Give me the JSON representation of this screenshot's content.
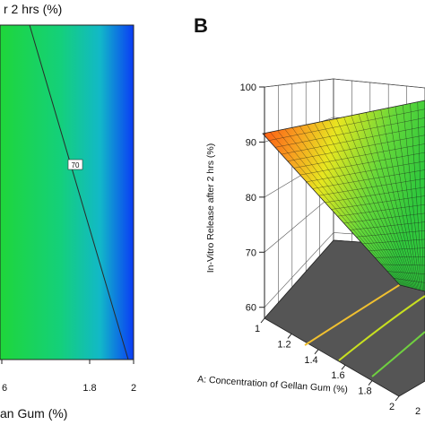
{
  "panel_b_label": "B",
  "chart_data": [
    {
      "type": "heatmap",
      "subtype": "contour",
      "title_fragment": "r 2 hrs (%)",
      "xlabel_fragment": "an Gum (%)",
      "x_ticks": [
        "6",
        "1.8",
        "2"
      ],
      "contours": [
        {
          "label": "70",
          "value": 70
        }
      ],
      "colors": {
        "low": "#1fd63a",
        "mid": "#14c8b4",
        "high": "#0a3cf5"
      },
      "grid": false
    },
    {
      "type": "surface",
      "subtype": "3d-response-surface",
      "xlabel": "A: Concentration of Gellan Gum (%)",
      "zlabel": "In-Vitro Release after 2 hrs (%)",
      "x_ticks": [
        "1",
        "1.2",
        "1.4",
        "1.6",
        "1.8",
        "2"
      ],
      "y_ticks_visible": [
        "2"
      ],
      "z_ticks": [
        "60",
        "70",
        "80",
        "90",
        "100"
      ],
      "zlim": [
        60,
        100
      ],
      "surface_at_x1": 90,
      "colors": {
        "high": "#ff4a10",
        "mid": "#f0e020",
        "low": "#3ccf3c",
        "floor": "#555555"
      },
      "grid": true
    }
  ]
}
